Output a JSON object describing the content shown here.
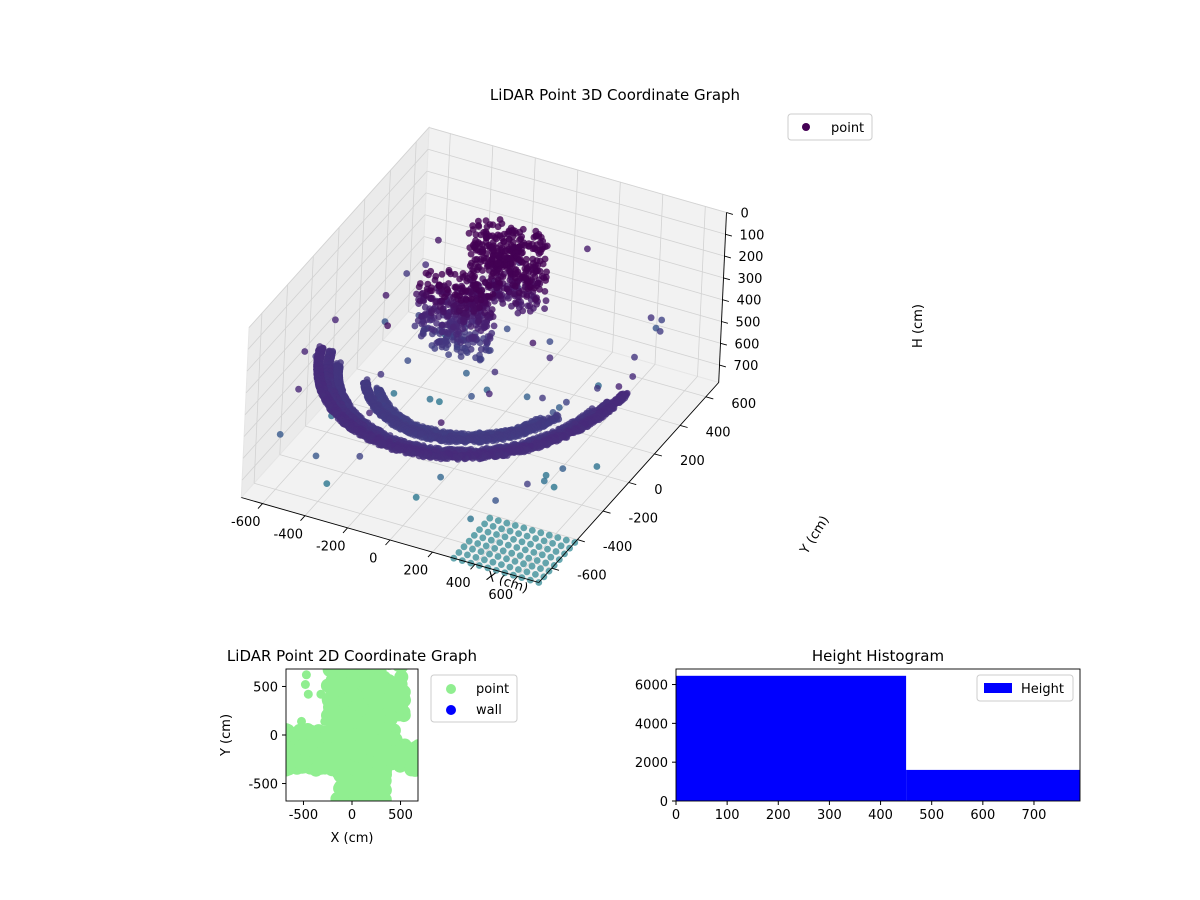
{
  "chart_data": [
    {
      "type": "scatter3d",
      "title": "LiDAR Point 3D Coordinate Graph",
      "xlabel": "X (cm)",
      "ylabel": "Y (cm)",
      "zlabel": "H (cm)",
      "xlim": [
        -700,
        700
      ],
      "ylim": [
        -700,
        700
      ],
      "zlim": [
        0,
        780
      ],
      "z_inverted": true,
      "xticks": [
        -600,
        -400,
        -200,
        0,
        200,
        400,
        600
      ],
      "yticks": [
        -600,
        -400,
        -200,
        0,
        200,
        400,
        600
      ],
      "zticks": [
        0,
        100,
        200,
        300,
        400,
        500,
        600,
        700
      ],
      "grid": true,
      "legend": {
        "position": "top-right",
        "entries": [
          {
            "label": "point",
            "color": "#440154"
          }
        ]
      },
      "colormap": "viridis",
      "series": [
        {
          "name": "point",
          "arcs": [
            {
              "radius": 660,
              "from_deg": 200,
              "to_deg": 360,
              "h": 380
            },
            {
              "radius": 620,
              "from_deg": 200,
              "to_deg": 355,
              "h": 400
            },
            {
              "radius": 580,
              "from_deg": 205,
              "to_deg": 350,
              "h": 420
            },
            {
              "radius": 470,
              "from_deg": 215,
              "to_deg": 340,
              "h": 440
            },
            {
              "radius": 420,
              "from_deg": 220,
              "to_deg": 335,
              "h": 460
            }
          ],
          "fans": [
            {
              "x": -200,
              "y": 100,
              "h_top": 180,
              "h_bottom": 470
            },
            {
              "x": -50,
              "y": 250,
              "h_top": 0,
              "h_bottom": 320
            }
          ],
          "outlier_count": 70,
          "ground_grid": {
            "x": [
              300,
              700
            ],
            "y": [
              -700,
              -400
            ],
            "h": 780
          }
        }
      ]
    },
    {
      "type": "scatter",
      "title": "LiDAR Point 2D Coordinate Graph",
      "xlabel": "X (cm)",
      "ylabel": "Y (cm)",
      "xlim": [
        -680,
        680
      ],
      "ylim": [
        -680,
        680
      ],
      "xticks": [
        -500,
        0,
        500
      ],
      "yticks": [
        -500,
        0,
        500
      ],
      "legend": {
        "position": "outside-right",
        "entries": [
          {
            "label": "point",
            "color": "#90ee90"
          },
          {
            "label": "wall",
            "color": "#0000ff"
          }
        ]
      },
      "series": [
        {
          "name": "point",
          "color": "#90ee90",
          "outliers": [
            [
              -470,
              620
            ],
            [
              -480,
              520
            ],
            [
              -450,
              420
            ],
            [
              -320,
              420
            ],
            [
              -520,
              140
            ],
            [
              -280,
              140
            ],
            [
              560,
              -180
            ]
          ]
        },
        {
          "name": "wall",
          "color": "#0000ff",
          "points": []
        }
      ]
    },
    {
      "type": "bar",
      "title": "Height Histogram",
      "legend": {
        "position": "top-right",
        "entries": [
          {
            "label": "Height",
            "color": "#0000ff"
          }
        ]
      },
      "bins": [
        [
          0,
          450
        ],
        [
          450,
          790
        ]
      ],
      "values": [
        6450,
        1600
      ],
      "xlim": [
        0,
        790
      ],
      "ylim": [
        0,
        6800
      ],
      "xticks": [
        0,
        100,
        200,
        300,
        400,
        500,
        600,
        700
      ],
      "yticks": [
        0,
        2000,
        4000,
        6000
      ],
      "color": "#0000ff"
    }
  ]
}
